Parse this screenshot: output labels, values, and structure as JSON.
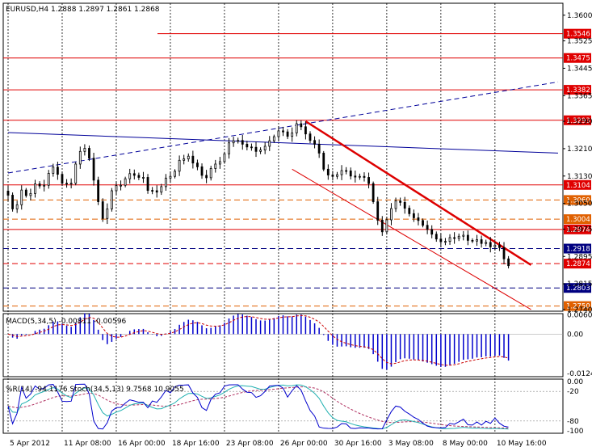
{
  "header": {
    "main_title": "EURUSD,H4  1.2888 1.2897 1.2861 1.2868",
    "macd_title": "MACD(5,34,5) -0.00811 -0.00596",
    "osc_title": "%R(14) -94.1176  Stoch(34,5,13) 9.7568 10.9055"
  },
  "colors": {
    "background": "#ffffff",
    "candle": "#000000",
    "resistance_level": "#e00000",
    "support_level": "#000080",
    "dashed_level": "#e06000",
    "trend_blue": "#000099",
    "trend_red": "#dd0000",
    "macd_hist": "#0000cc",
    "macd_signal": "#cc0000",
    "wpr_line": "#0000cc",
    "stoch_main": "#20b0b0",
    "stoch_signal": "#b03060"
  },
  "chart_data": [
    {
      "type": "candlestick",
      "symbol": "EURUSD",
      "timeframe": "H4",
      "ohlc_last": {
        "open": 1.2888,
        "high": 1.2897,
        "low": 1.2861,
        "close": 1.2868
      },
      "y_ticks": [
        "1.3600",
        "1.3525",
        "1.3445",
        "1.3365",
        "1.3290",
        "1.3210",
        "1.3130",
        "1.3050",
        "1.2975",
        "1.2895",
        "1.2815",
        "1.2740"
      ],
      "x_ticks": [
        "5 Apr 2012",
        "11 Apr 08:00",
        "16 Apr 00:00",
        "18 Apr 16:00",
        "23 Apr 08:00",
        "26 Apr 00:00",
        "30 Apr 16:00",
        "3 May 08:00",
        "8 May 00:00",
        "10 May 16:00"
      ],
      "ylim": [
        1.2735,
        1.3635
      ],
      "grid": true,
      "horizontal_levels": [
        {
          "label": "1.3546",
          "value": 1.3546,
          "style": "solid",
          "color": "#e00000"
        },
        {
          "label": "1.3475",
          "value": 1.3475,
          "style": "solid",
          "color": "#e00000"
        },
        {
          "label": "1.3382",
          "value": 1.3382,
          "style": "solid",
          "color": "#e00000"
        },
        {
          "label": "1.3293",
          "value": 1.3293,
          "style": "solid",
          "color": "#e00000"
        },
        {
          "label": "1.3104",
          "value": 1.3104,
          "style": "solid",
          "color": "#e00000"
        },
        {
          "label": "1.3060",
          "value": 1.306,
          "style": "dashed",
          "color": "#e06000"
        },
        {
          "label": "1.3004",
          "value": 1.3004,
          "style": "dashed",
          "color": "#e06000"
        },
        {
          "label": "1.2974",
          "value": 1.2974,
          "style": "solid",
          "color": "#e00000"
        },
        {
          "label": "1.2918",
          "value": 1.2918,
          "style": "dashed",
          "color": "#000080"
        },
        {
          "label": "1.2874",
          "value": 1.2874,
          "style": "dashed",
          "color": "#e00000"
        },
        {
          "label": "1.2803",
          "value": 1.2803,
          "style": "dashed",
          "color": "#000080"
        },
        {
          "label": "1.2750",
          "value": 1.275,
          "style": "dashed",
          "color": "#e06000"
        }
      ],
      "trendlines": [
        {
          "from": [
            0,
            1.3257
          ],
          "to": [
            122,
            1.3197
          ],
          "style": "solid",
          "color": "#000099",
          "width": 1
        },
        {
          "from": [
            0,
            1.3139
          ],
          "to": [
            122,
            1.3405
          ],
          "style": "dashed",
          "color": "#000099",
          "width": 1
        },
        {
          "from": [
            66,
            1.329
          ],
          "to": [
            116,
            1.287
          ],
          "style": "solid",
          "color": "#dd0000",
          "width": 2.5
        },
        {
          "from": [
            63,
            1.315
          ],
          "to": [
            116,
            1.274
          ],
          "style": "solid",
          "color": "#dd0000",
          "width": 1
        }
      ],
      "closes": [
        1.3074,
        1.3034,
        1.3046,
        1.3089,
        1.3073,
        1.3079,
        1.3107,
        1.3101,
        1.3103,
        1.3138,
        1.3156,
        1.3135,
        1.3109,
        1.3108,
        1.3109,
        1.3165,
        1.3202,
        1.3211,
        1.3182,
        1.3118,
        1.3055,
        1.3006,
        1.3034,
        1.3087,
        1.3102,
        1.3103,
        1.3122,
        1.3137,
        1.3132,
        1.3126,
        1.3126,
        1.3088,
        1.3087,
        1.3083,
        1.3099,
        1.3124,
        1.3129,
        1.3144,
        1.3176,
        1.318,
        1.3188,
        1.3168,
        1.3157,
        1.3132,
        1.3125,
        1.3152,
        1.3165,
        1.3172,
        1.3195,
        1.3227,
        1.3233,
        1.3234,
        1.3223,
        1.3215,
        1.3214,
        1.3202,
        1.3206,
        1.3217,
        1.3233,
        1.3245,
        1.3262,
        1.3259,
        1.3246,
        1.3256,
        1.3283,
        1.3274,
        1.3253,
        1.3234,
        1.3223,
        1.3197,
        1.315,
        1.3133,
        1.3129,
        1.3134,
        1.3146,
        1.3145,
        1.313,
        1.3127,
        1.3129,
        1.3126,
        1.3108,
        1.3055,
        1.3001,
        1.2967,
        1.3002,
        1.3035,
        1.3057,
        1.3053,
        1.3036,
        1.302,
        1.3008,
        1.3,
        1.2986,
        1.2974,
        1.296,
        1.2946,
        1.2938,
        1.2939,
        1.295,
        1.2948,
        1.2954,
        1.2957,
        1.2942,
        1.294,
        1.2944,
        1.2933,
        1.2936,
        1.2923,
        1.2928,
        1.2921,
        1.2888,
        1.2868
      ],
      "macd": {
        "ylim": [
          -0.0135,
          0.0065
        ],
        "y_ticks": [
          "0.00609",
          "0.00",
          "-0.01247"
        ],
        "histogram_last": -0.00811,
        "signal_last": -0.00596
      },
      "oscillators": {
        "ylim": [
          -105,
          5
        ],
        "y_ticks": [
          "0.00",
          "-20",
          "-80",
          "-100"
        ],
        "wpr_last": -94.1176,
        "stoch_main_last": 9.7568,
        "stoch_signal_last": 10.9055
      }
    }
  ]
}
